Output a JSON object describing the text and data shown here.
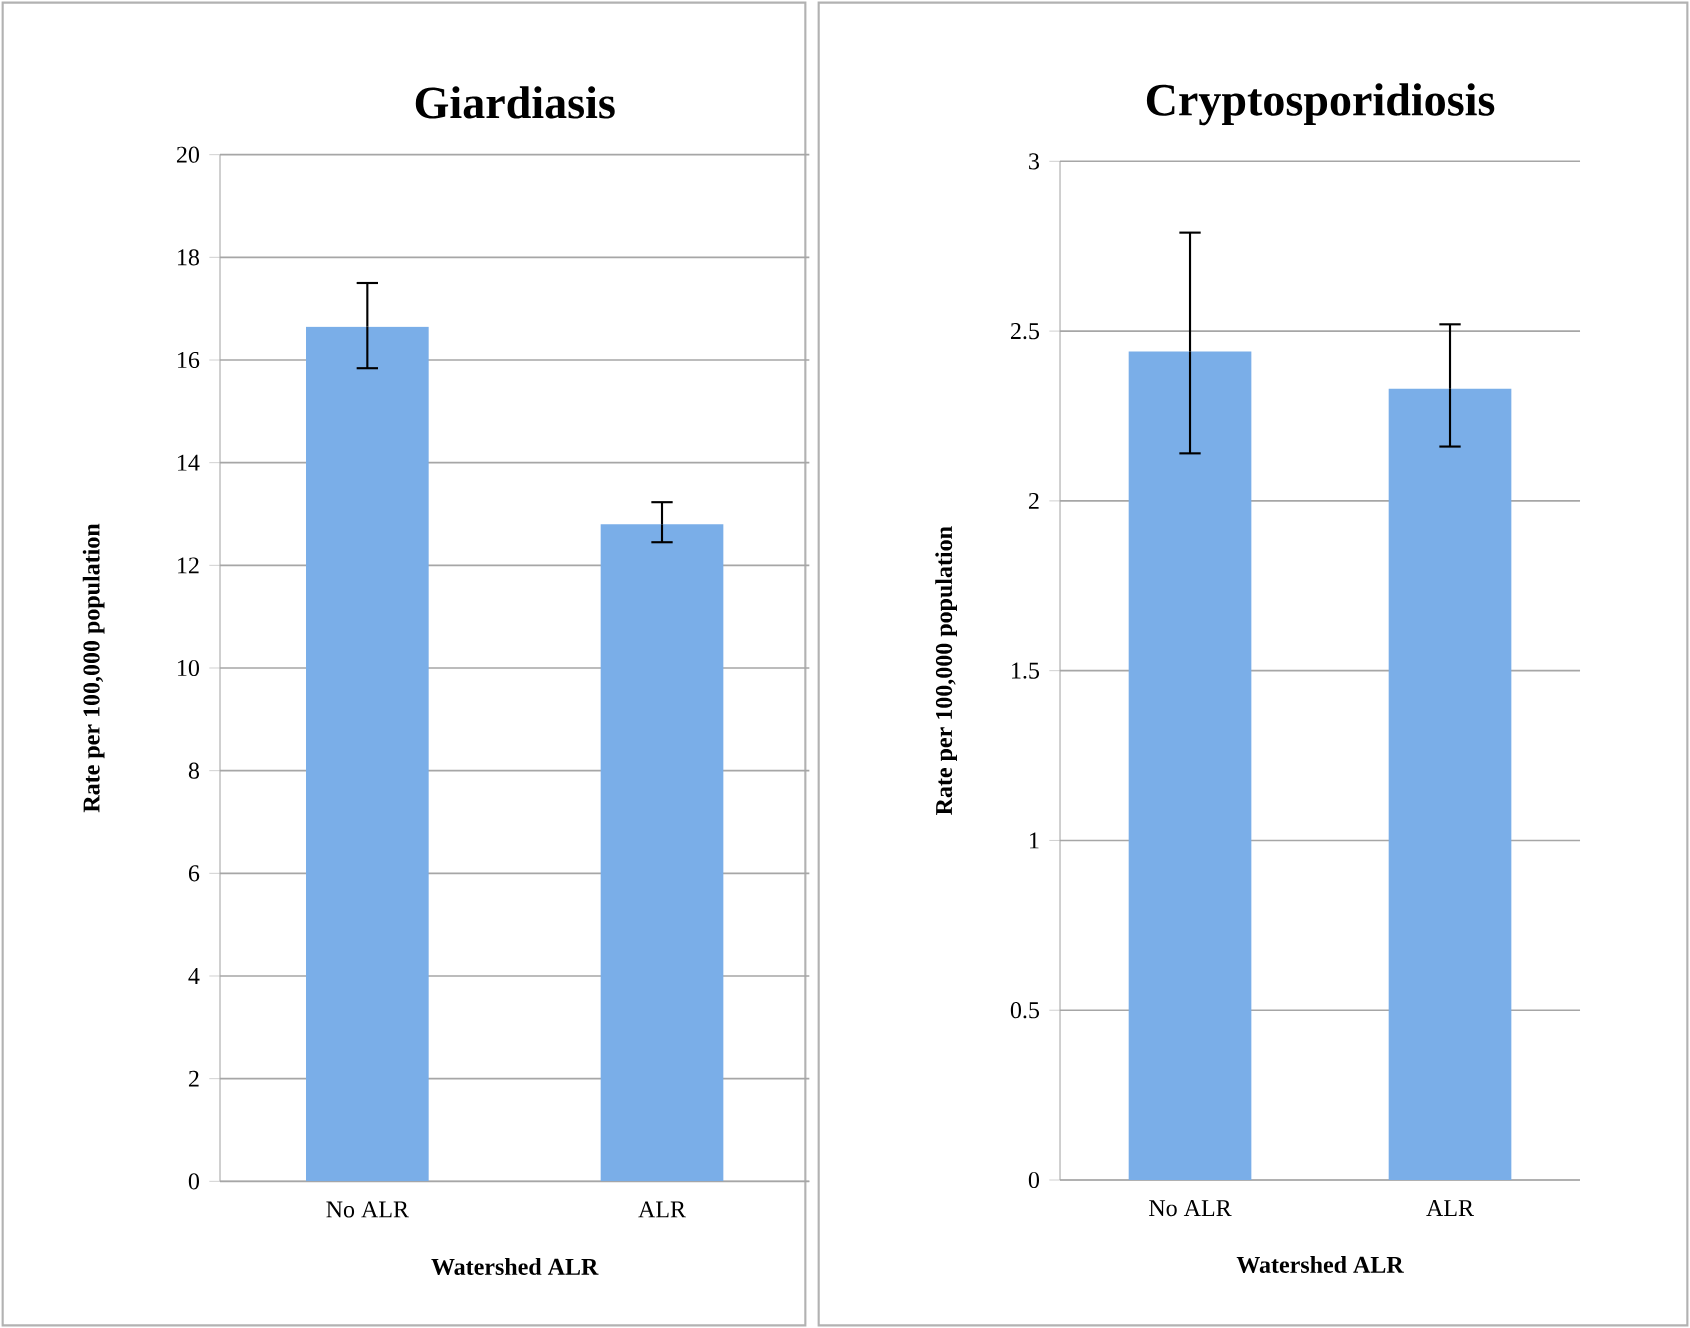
{
  "chart_data": [
    {
      "type": "bar",
      "title": "Giardiasis",
      "xlabel": "Watershed ALR",
      "ylabel": "Rate per 100,000 population",
      "categories": [
        "No ALR",
        "ALR"
      ],
      "values": [
        16.65,
        12.8
      ],
      "errors": [
        [
          15.84,
          17.5
        ],
        [
          12.45,
          13.23
        ]
      ],
      "color": "#7aaee8",
      "ylim": [
        0,
        20
      ],
      "yticks": [
        0,
        2,
        4,
        6,
        8,
        10,
        12,
        14,
        16,
        18,
        20
      ],
      "grid": "y"
    },
    {
      "type": "bar",
      "title": "Cryptosporidiosis",
      "xlabel": "Watershed ALR",
      "ylabel": "Rate per 100,000 population",
      "categories": [
        "No ALR",
        "ALR"
      ],
      "values": [
        2.44,
        2.33
      ],
      "errors": [
        [
          2.14,
          2.79
        ],
        [
          2.16,
          2.52
        ]
      ],
      "color": "#7aaee8",
      "ylim": [
        0,
        3
      ],
      "yticks": [
        0,
        0.5,
        1,
        1.5,
        2,
        2.5,
        3
      ],
      "grid": "y"
    }
  ]
}
